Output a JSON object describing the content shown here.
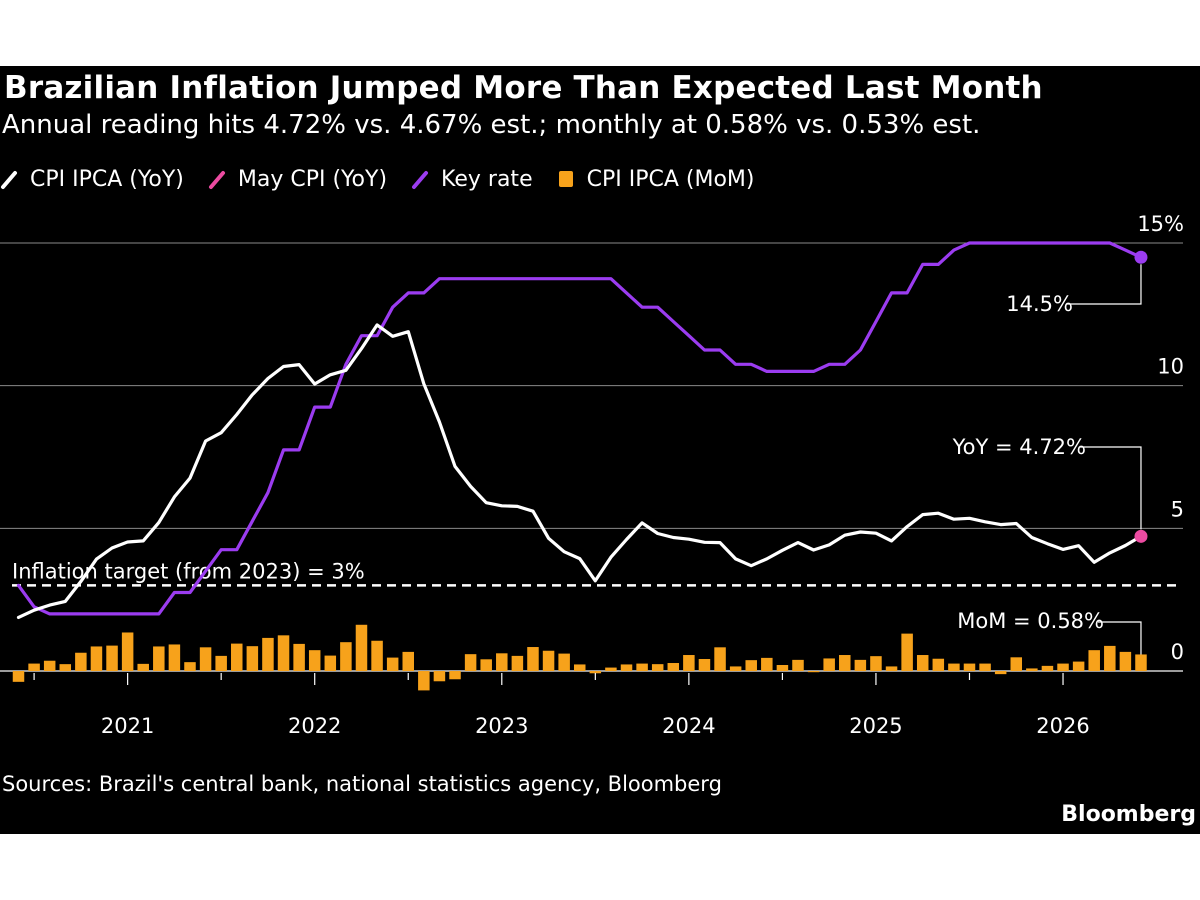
{
  "chart_data": {
    "type": "line",
    "title": "Brazilian Inflation Jumped More Than Expected Last Month",
    "subtitle": "Annual reading hits 4.72% vs. 4.67% est.; monthly at 0.58% vs. 0.53% est.",
    "x_start": "2020-06",
    "x_ticks": [
      "2021",
      "2022",
      "2023",
      "2024",
      "2025",
      "2026"
    ],
    "y_ticks": [
      "15%",
      "10",
      "5",
      "0"
    ],
    "ylim": [
      -0.8,
      15
    ],
    "grid": true,
    "legend_position": "top-left",
    "series": [
      {
        "name": "CPI IPCA (YoY)",
        "type": "line",
        "color": "#ffffff",
        "values": [
          1.88,
          2.13,
          2.31,
          2.44,
          3.14,
          3.92,
          4.31,
          4.52,
          4.56,
          5.2,
          6.1,
          6.76,
          8.06,
          8.35,
          8.99,
          9.68,
          10.25,
          10.67,
          10.74,
          10.06,
          10.38,
          10.54,
          11.3,
          12.13,
          11.73,
          11.89,
          10.07,
          8.73,
          7.17,
          6.47,
          5.9,
          5.79,
          5.77,
          5.6,
          4.65,
          4.18,
          3.94,
          3.16,
          3.99,
          4.61,
          5.19,
          4.82,
          4.68,
          4.62,
          4.51,
          4.5,
          3.93,
          3.69,
          3.93,
          4.23,
          4.5,
          4.24,
          4.42,
          4.76,
          4.87,
          4.83,
          4.56,
          5.06,
          5.48,
          5.53,
          5.32,
          5.35,
          5.23,
          5.13,
          5.17,
          4.68,
          4.46,
          4.26,
          4.39,
          3.81,
          4.14,
          4.4,
          4.72
        ]
      },
      {
        "name": "May CPI (YoY)",
        "type": "point",
        "color": "#ec4ba1",
        "month_index": 72,
        "value": 4.72
      },
      {
        "name": "Key rate",
        "type": "line",
        "color": "#9b3cf0",
        "values": [
          3.0,
          2.25,
          2.0,
          2.0,
          2.0,
          2.0,
          2.0,
          2.0,
          2.0,
          2.0,
          2.75,
          2.75,
          3.5,
          4.25,
          4.25,
          5.25,
          6.25,
          7.75,
          7.75,
          9.25,
          9.25,
          10.75,
          11.75,
          11.75,
          12.75,
          13.25,
          13.25,
          13.75,
          13.75,
          13.75,
          13.75,
          13.75,
          13.75,
          13.75,
          13.75,
          13.75,
          13.75,
          13.75,
          13.75,
          13.25,
          12.75,
          12.75,
          12.25,
          11.75,
          11.25,
          11.25,
          10.75,
          10.75,
          10.5,
          10.5,
          10.5,
          10.5,
          10.75,
          10.75,
          11.25,
          12.25,
          13.25,
          13.25,
          14.25,
          14.25,
          14.75,
          15.0,
          15.0,
          15.0,
          15.0,
          15.0,
          15.0,
          15.0,
          15.0,
          15.0,
          15.0,
          14.75,
          14.5
        ]
      },
      {
        "name": "CPI IPCA (MoM)",
        "type": "bar",
        "color": "#f7a21b",
        "values": [
          -0.38,
          0.26,
          0.36,
          0.24,
          0.64,
          0.86,
          0.89,
          1.35,
          0.25,
          0.86,
          0.93,
          0.31,
          0.83,
          0.53,
          0.96,
          0.87,
          1.16,
          1.25,
          0.95,
          0.73,
          0.54,
          1.01,
          1.62,
          1.06,
          0.47,
          0.67,
          -0.68,
          -0.36,
          -0.29,
          0.59,
          0.41,
          0.62,
          0.53,
          0.84,
          0.71,
          0.61,
          0.23,
          -0.08,
          0.12,
          0.23,
          0.26,
          0.24,
          0.28,
          0.56,
          0.42,
          0.83,
          0.16,
          0.38,
          0.46,
          0.21,
          0.39,
          0.0,
          0.44,
          0.56,
          0.39,
          0.52,
          0.16,
          1.31,
          0.56,
          0.43,
          0.26,
          0.26,
          0.26,
          -0.11,
          0.48,
          0.09,
          0.18,
          0.26,
          0.33,
          0.73,
          0.88,
          0.67,
          0.58
        ]
      }
    ],
    "reference_line": {
      "label": "Inflation target (from 2023) = 3%",
      "value": 3
    },
    "annotations": {
      "key_rate_last": "14.5%",
      "yoy_last": "YoY = 4.72%",
      "mom_last": "MoM = 0.58%"
    }
  },
  "footer": {
    "sources": "Sources: Brazil's central bank, national statistics agency, Bloomberg",
    "brand": "Bloomberg"
  }
}
